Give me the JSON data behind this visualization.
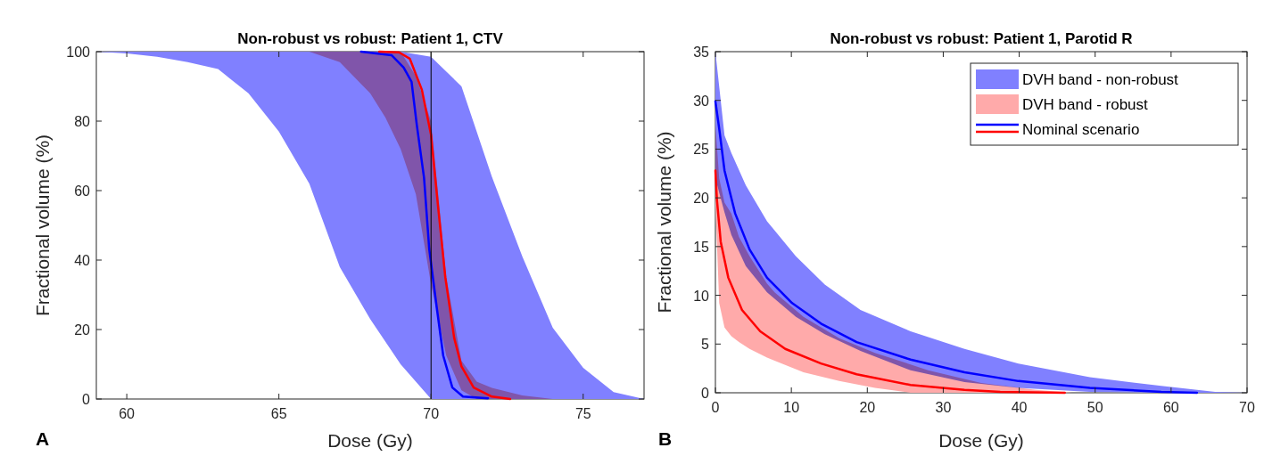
{
  "chart_data": [
    {
      "type": "line",
      "title": "Non-robust vs robust: Patient 1, CTV",
      "xlabel": "Dose (Gy)",
      "ylabel": "Fractional volume (%)",
      "xlim": [
        59,
        77
      ],
      "xticks": [
        60,
        65,
        70,
        75
      ],
      "ylim": [
        0,
        100
      ],
      "yticks": [
        0,
        20,
        40,
        60,
        80,
        100
      ],
      "annotations": [
        "A"
      ],
      "ref_lines": [
        {
          "axis": "x",
          "value": 70,
          "color": "#000000"
        }
      ],
      "series": [
        {
          "type": "line",
          "color": "#8080ff",
          "x": [
            59,
            60,
            61,
            62,
            63,
            64,
            65,
            66,
            67,
            68,
            69,
            70,
            71,
            72,
            73,
            74,
            75,
            76,
            77
          ],
          "lower": [
            100,
            99.5,
            98.5,
            97,
            95,
            88,
            77,
            62,
            38,
            23,
            10,
            0,
            0,
            0,
            0,
            0,
            0,
            0,
            0
          ],
          "upper": [
            100,
            100,
            100,
            100,
            100,
            100,
            100,
            100,
            100,
            100,
            100,
            98.5,
            90,
            64,
            41,
            20.5,
            9,
            2,
            0
          ],
          "values": [
            null,
            null,
            null,
            null,
            null,
            null,
            null,
            null,
            null,
            null,
            null,
            null,
            null,
            null,
            null,
            null,
            null,
            null,
            null
          ]
        },
        {
          "type": "line",
          "color": "#ffaaaa",
          "x": [
            66,
            67,
            68,
            68.5,
            69,
            69.5,
            70,
            70.5,
            71,
            71.5,
            72,
            73,
            74
          ],
          "lower": [
            100,
            97,
            88,
            81,
            72,
            59,
            33,
            12.5,
            2.5,
            0,
            0,
            0,
            0
          ],
          "upper": [
            100,
            100,
            100,
            100,
            100,
            93,
            80,
            35,
            11,
            5,
            3.2,
            1,
            0
          ],
          "values": [
            null,
            null,
            null,
            null,
            null,
            null,
            null,
            null,
            null,
            null,
            null,
            null,
            null
          ]
        },
        {
          "type": "line",
          "color": "#0000ff",
          "x": [
            67.7,
            68.7,
            69.1,
            69.36,
            69.53,
            69.77,
            69.94,
            70.18,
            70.4,
            70.7,
            71.05,
            71.87
          ],
          "values": [
            100,
            99,
            95.4,
            91.3,
            79,
            63.7,
            43.2,
            26.8,
            12.5,
            3.3,
            0.7,
            0.2
          ]
        },
        {
          "type": "line",
          "color": "#ff0000",
          "x": [
            68.3,
            68.95,
            69.3,
            69.7,
            70,
            70.23,
            70.47,
            70.76,
            71,
            71.4,
            72,
            72.6
          ],
          "values": [
            100,
            99.8,
            98,
            89,
            76,
            55.5,
            35,
            17.6,
            9.4,
            3.3,
            0.7,
            0
          ]
        }
      ]
    },
    {
      "type": "line",
      "title": "Non-robust vs robust: Patient 1, Parotid R",
      "xlabel": "Dose (Gy)",
      "ylabel": "Fractional volume (%)",
      "xlim": [
        0,
        70
      ],
      "xticks": [
        0,
        10,
        20,
        30,
        40,
        50,
        60,
        70
      ],
      "ylim": [
        0,
        35
      ],
      "yticks": [
        0,
        5,
        10,
        15,
        20,
        25,
        30,
        35
      ],
      "legend": "top right",
      "annotations": [
        "B"
      ],
      "series": [
        {
          "name": "DVH band - non-robust",
          "type": "line",
          "color": "#8080ff",
          "x": [
            0,
            1.2,
            2.1,
            4,
            6.8,
            10.6,
            14.4,
            19.1,
            25.7,
            32.8,
            39.9,
            49.3,
            58.7,
            65.8,
            70
          ],
          "lower": [
            22,
            18.5,
            16.2,
            13,
            10.3,
            7.8,
            6,
            4.3,
            2.3,
            1.1,
            0.5,
            0.1,
            0,
            0,
            0
          ],
          "upper": [
            35,
            26.4,
            24.6,
            21.3,
            17.6,
            14,
            11.1,
            8.5,
            6.3,
            4.5,
            3,
            1.6,
            0.7,
            0.1,
            0
          ],
          "values": [
            null,
            null,
            null,
            null,
            null,
            null,
            null,
            null,
            null,
            null,
            null,
            null,
            null,
            null,
            null
          ]
        },
        {
          "name": "DVH band - robust",
          "type": "line",
          "color": "#ffaaaa",
          "x": [
            0,
            0.5,
            1.2,
            2.1,
            3.1,
            4.5,
            6.8,
            7.8,
            11.6,
            16.3,
            21,
            25.7,
            28,
            35,
            42.2,
            47
          ],
          "lower": [
            19.5,
            9.2,
            6.7,
            5.8,
            5.2,
            4.5,
            3.6,
            3.3,
            2.1,
            1.2,
            0.5,
            0,
            0,
            0,
            0,
            0
          ],
          "upper": [
            27.5,
            22,
            19.5,
            18.4,
            16,
            14,
            11.2,
            10.3,
            7.8,
            5.6,
            4.1,
            2.9,
            2.3,
            1,
            0.3,
            0
          ],
          "values": [
            null,
            null,
            null,
            null,
            null,
            null,
            null,
            null,
            null,
            null,
            null,
            null,
            null,
            null,
            null,
            null
          ]
        },
        {
          "name": "Nominal scenario",
          "type": "line",
          "color": "#0000ff",
          "x": [
            0,
            0.5,
            1.2,
            2.6,
            4.5,
            6.8,
            10.1,
            13.9,
            18.6,
            25.7,
            32.8,
            39.9,
            49.3,
            58.7,
            63.4
          ],
          "values": [
            29.9,
            27.1,
            22.8,
            18.4,
            14.7,
            11.8,
            9.2,
            7.1,
            5.2,
            3.4,
            2.1,
            1.2,
            0.5,
            0.1,
            0
          ]
        },
        {
          "type": "line",
          "color": "#ff0000",
          "x": [
            0,
            0.2,
            0.7,
            1.7,
            3.5,
            5.9,
            9.2,
            13.9,
            18.6,
            25.7,
            32.8,
            37.5,
            46
          ],
          "values": [
            22.8,
            19.8,
            15.5,
            11.8,
            8.5,
            6.3,
            4.5,
            3,
            1.9,
            0.8,
            0.3,
            0.1,
            0
          ]
        }
      ]
    }
  ]
}
